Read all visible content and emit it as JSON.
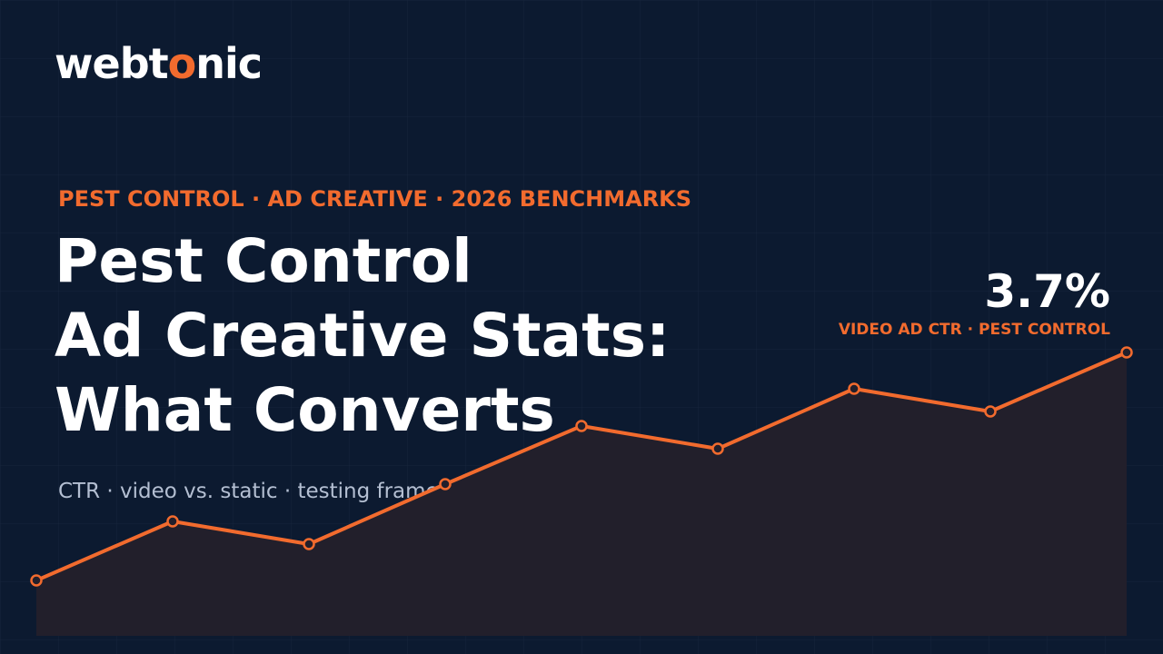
{
  "logo": [
    "webt",
    "o",
    "nic"
  ],
  "eyebrow": "PEST CONTROL · AD CREATIVE · 2026 BENCHMARKS",
  "title": [
    "Pest Control",
    "Ad Creative Stats:",
    "What Converts"
  ],
  "subtitle": "CTR · video vs. static · testing frameworks",
  "stat": {
    "value": "3.7%",
    "label": "VIDEO AD CTR · PEST CONTROL"
  }
}
